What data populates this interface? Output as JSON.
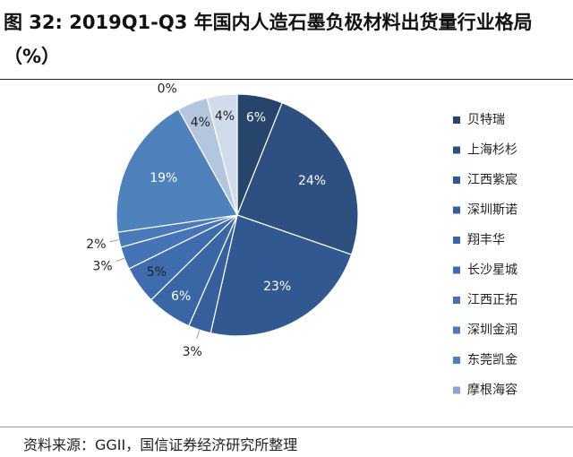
{
  "page": {
    "title": "图 32: 2019Q1-Q3 年国内人造石墨负极材料出货量行业格局（%）",
    "source": "资料来源：GGII，国信证券经济研究所整理"
  },
  "chart_data": {
    "type": "pie",
    "title": "图 32: 2019Q1-Q3 年国内人造石墨负极材料出货量行业格局（%）",
    "unit": "%",
    "start": "12 o'clock",
    "direction": "clockwise",
    "legend_position": "right",
    "slices": [
      {
        "name": "贝特瑞",
        "value": 6,
        "label": "6%",
        "color": "#27456b"
      },
      {
        "name": "上海杉杉",
        "value": 24,
        "label": "24%",
        "color": "#2d5080"
      },
      {
        "name": "江西紫宸",
        "value": 23,
        "label": "23%",
        "color": "#315890"
      },
      {
        "name": "深圳斯诺",
        "value": 3,
        "label": "3%",
        "color": "#36609c"
      },
      {
        "name": "翔丰华",
        "value": 6,
        "label": "6%",
        "color": "#3a66a6"
      },
      {
        "name": "长沙星城",
        "value": 5,
        "label": "5%",
        "color": "#3f6cae"
      },
      {
        "name": "江西正拓",
        "value": 3,
        "label": "3%",
        "color": "#4573b6"
      },
      {
        "name": "深圳金润",
        "value": 2,
        "label": "2%",
        "color": "#4a7ab9"
      },
      {
        "name": "东莞凯金",
        "value": 19,
        "label": "19%",
        "color": "#4f81bd"
      },
      {
        "name": "摩根海容",
        "value": 0,
        "label": "0%",
        "color": "#88a6cf"
      },
      {
        "name": "",
        "value": 4,
        "label": "4%",
        "color": "#b4c6de"
      },
      {
        "name": "",
        "value": 4,
        "label": "4%",
        "color": "#d0dcec"
      }
    ]
  }
}
